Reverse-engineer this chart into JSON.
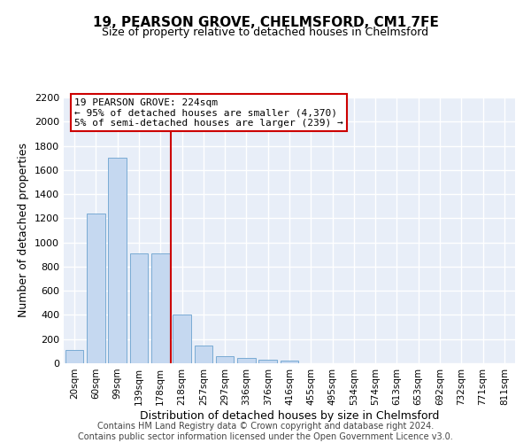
{
  "title": "19, PEARSON GROVE, CHELMSFORD, CM1 7FE",
  "subtitle": "Size of property relative to detached houses in Chelmsford",
  "xlabel": "Distribution of detached houses by size in Chelmsford",
  "ylabel": "Number of detached properties",
  "categories": [
    "20sqm",
    "60sqm",
    "99sqm",
    "139sqm",
    "178sqm",
    "218sqm",
    "257sqm",
    "297sqm",
    "336sqm",
    "376sqm",
    "416sqm",
    "455sqm",
    "495sqm",
    "534sqm",
    "574sqm",
    "613sqm",
    "653sqm",
    "692sqm",
    "732sqm",
    "771sqm",
    "811sqm"
  ],
  "values": [
    110,
    1240,
    1700,
    910,
    910,
    400,
    150,
    60,
    45,
    30,
    20,
    0,
    0,
    0,
    0,
    0,
    0,
    0,
    0,
    0,
    0
  ],
  "bar_color": "#c5d8f0",
  "bar_edge_color": "#7aabd4",
  "vline_index": 5,
  "vline_color": "#cc0000",
  "annotation_text": "19 PEARSON GROVE: 224sqm\n← 95% of detached houses are smaller (4,370)\n5% of semi-detached houses are larger (239) →",
  "annotation_box_color": "#cc0000",
  "ylim": [
    0,
    2200
  ],
  "yticks": [
    0,
    200,
    400,
    600,
    800,
    1000,
    1200,
    1400,
    1600,
    1800,
    2000,
    2200
  ],
  "bg_color": "#e8eef8",
  "grid_color": "#ffffff",
  "footer": "Contains HM Land Registry data © Crown copyright and database right 2024.\nContains public sector information licensed under the Open Government Licence v3.0.",
  "title_fontsize": 11,
  "subtitle_fontsize": 9,
  "xlabel_fontsize": 9,
  "ylabel_fontsize": 9,
  "footer_fontsize": 7,
  "annot_fontsize": 8
}
